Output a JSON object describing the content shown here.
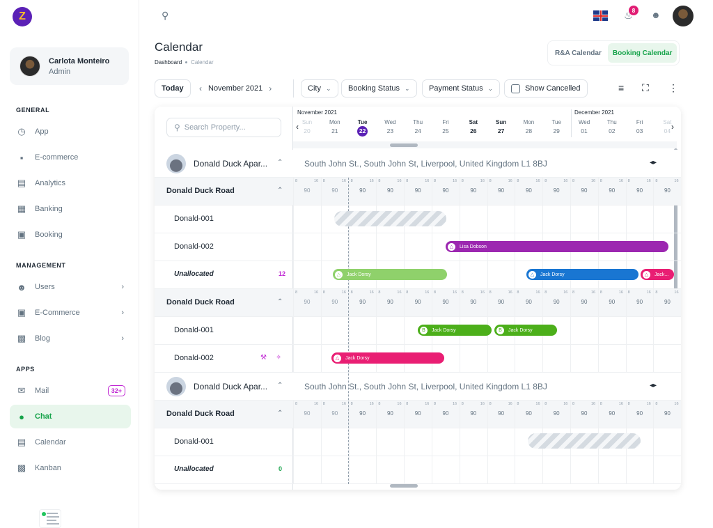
{
  "app": {
    "logo_letter": "Z"
  },
  "user": {
    "name": "Carlota Monteiro",
    "role": "Admin"
  },
  "sidebar": {
    "sections": [
      {
        "title": "GENERAL",
        "items": [
          {
            "label": "App",
            "icon": "speedometer-icon"
          },
          {
            "label": "E-commerce",
            "icon": "bag-icon"
          },
          {
            "label": "Analytics",
            "icon": "chart-icon"
          },
          {
            "label": "Banking",
            "icon": "bank-icon"
          },
          {
            "label": "Booking",
            "icon": "calendar-check-icon"
          }
        ]
      },
      {
        "title": "MANAGEMENT",
        "items": [
          {
            "label": "Users",
            "icon": "user-icon"
          },
          {
            "label": "E-Commerce",
            "icon": "cart-icon"
          },
          {
            "label": "Blog",
            "icon": "blog-icon"
          }
        ]
      },
      {
        "title": "APPS",
        "items": [
          {
            "label": "Mail",
            "icon": "mail-icon",
            "badge": "32+"
          },
          {
            "label": "Chat",
            "icon": "chat-icon"
          },
          {
            "label": "Calendar",
            "icon": "calendar-icon"
          },
          {
            "label": "Kanban",
            "icon": "kanban-icon"
          }
        ]
      }
    ]
  },
  "topbar": {
    "notification_count": "8"
  },
  "header": {
    "title": "Calendar",
    "breadcrumb": [
      "Dashboard",
      "Calendar"
    ],
    "views": [
      "R&A Calendar",
      "Booking Calendar"
    ],
    "active_view": "Booking Calendar"
  },
  "toolbar": {
    "today": "Today",
    "month": "November 2021",
    "filters": [
      "City",
      "Booking Status",
      "Payment Status"
    ],
    "show_cancelled": "Show Cancelled"
  },
  "calendar": {
    "search_placeholder": "Search Property...",
    "month_labels": [
      "November 2021",
      "December 2021"
    ],
    "days": [
      {
        "dn": "Sun",
        "dd": "20"
      },
      {
        "dn": "Mon",
        "dd": "21"
      },
      {
        "dn": "Tue",
        "dd": "22"
      },
      {
        "dn": "Wed",
        "dd": "23"
      },
      {
        "dn": "Thu",
        "dd": "24"
      },
      {
        "dn": "Fri",
        "dd": "25"
      },
      {
        "dn": "Sat",
        "dd": "26"
      },
      {
        "dn": "Sun",
        "dd": "27"
      },
      {
        "dn": "Mon",
        "dd": "28"
      },
      {
        "dn": "Tue",
        "dd": "29"
      },
      {
        "dn": "Wed",
        "dd": "01"
      },
      {
        "dn": "Thu",
        "dd": "02"
      },
      {
        "dn": "Fri",
        "dd": "03"
      },
      {
        "dn": "Sat",
        "dd": "04"
      }
    ],
    "price": "90",
    "small_a": "8",
    "small_b": "16",
    "properties": [
      {
        "name": "Donald Duck Apar...",
        "address": "South John St., South John St, Liverpool, United Kingdom L1 8BJ"
      },
      {
        "name": "Donald Duck Apar...",
        "address": "South John St., South John St, Liverpool, United Kingdom L1 8BJ"
      }
    ],
    "group_name": "Donald Duck Road",
    "units": [
      "Donald-001",
      "Donald-002"
    ],
    "unallocated": "Unallocated",
    "unallocated_counts": [
      "12",
      "0"
    ],
    "bookings": {
      "lisa": "Lisa Dobson",
      "jack": "Jack Dorsy",
      "jack_short": "Jack..."
    }
  },
  "colors": {
    "purple": "#9c27b0",
    "light_green": "#8fd16b",
    "green": "#4caf1a",
    "blue": "#1976d2",
    "pink": "#e91e73",
    "accent_green": "#16a34a",
    "today_purple": "#5b21b6"
  }
}
